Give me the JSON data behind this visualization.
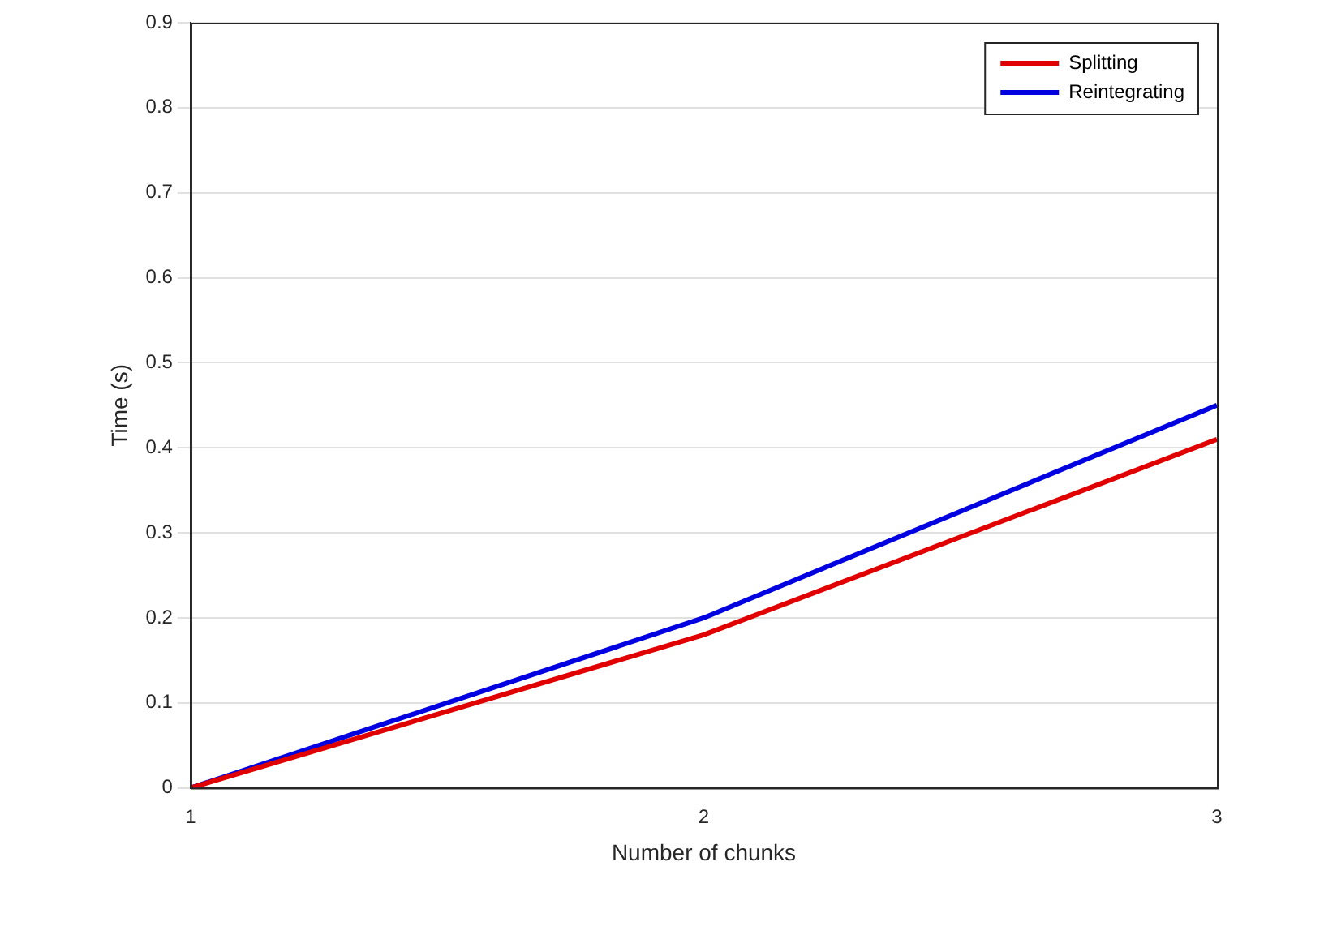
{
  "chart_data": {
    "type": "line",
    "xlabel": "Number of chunks",
    "ylabel": "Time (s)",
    "x": [
      1,
      2,
      3
    ],
    "series": [
      {
        "name": "Splitting",
        "color": "#e00000",
        "values": [
          0,
          0.18,
          0.41
        ]
      },
      {
        "name": "Reintegrating",
        "color": "#0000e0",
        "values": [
          0,
          0.2,
          0.45
        ]
      }
    ],
    "xlim": [
      1,
      3
    ],
    "xticks": [
      1,
      2,
      3
    ],
    "ylim": [
      0,
      0.9
    ],
    "yticks": [
      0,
      0.1,
      0.2,
      0.3,
      0.4,
      0.5,
      0.6,
      0.7,
      0.8,
      0.9
    ],
    "grid": "y",
    "legend": "top right",
    "marker": "none",
    "line_style": "solid"
  }
}
